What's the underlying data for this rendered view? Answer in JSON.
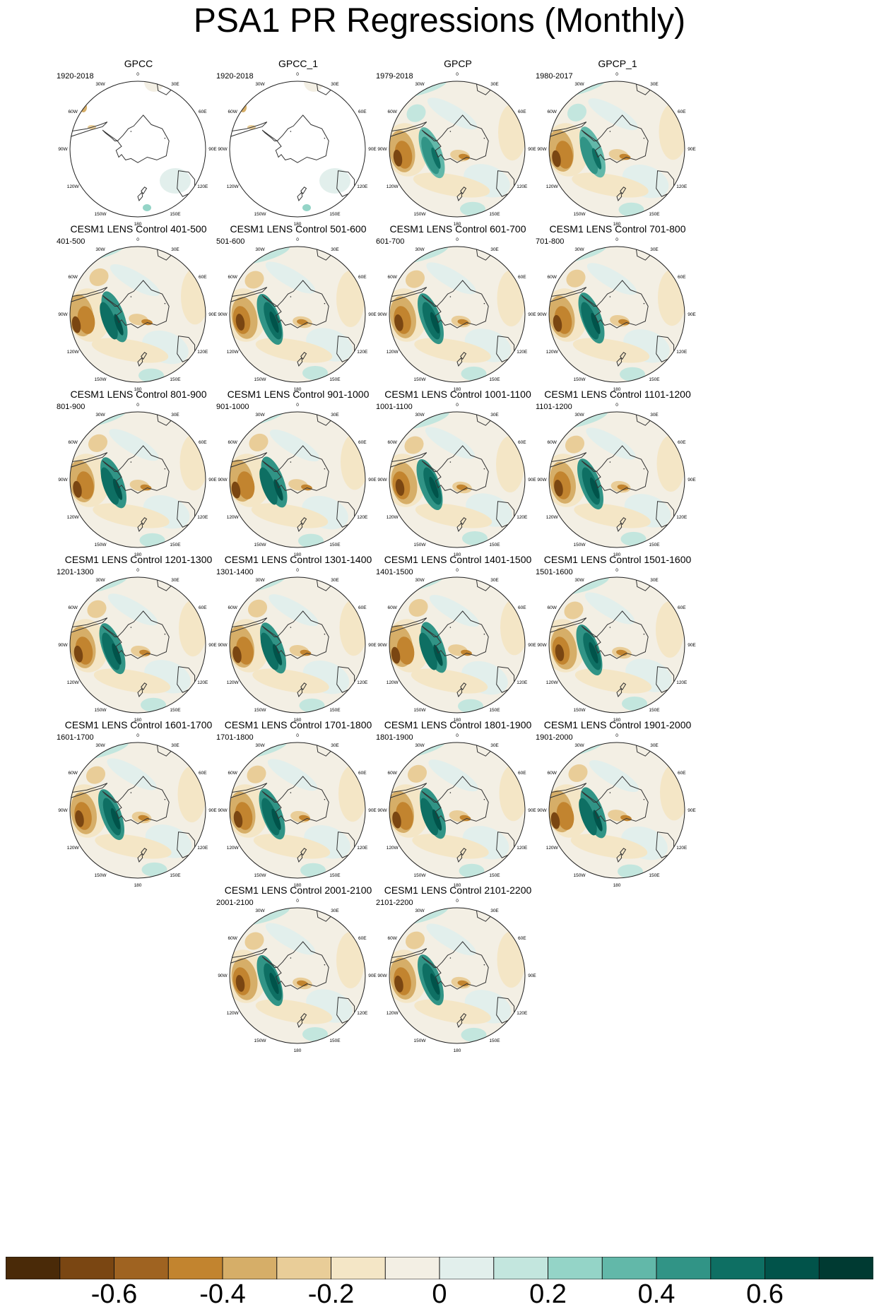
{
  "title": "PSA1 PR Regressions (Monthly)",
  "map_labels": {
    "lon": [
      "0",
      "30E",
      "60E",
      "90E",
      "120E",
      "150E",
      "180",
      "150W",
      "120W",
      "90W",
      "60W",
      "30W"
    ]
  },
  "panels": [
    {
      "title": "GPCC",
      "period": "1920-2018",
      "style": "gpcc"
    },
    {
      "title": "GPCC_1",
      "period": "1920-2018",
      "style": "gpcc"
    },
    {
      "title": "GPCP",
      "period": "1979-2018",
      "style": "obs"
    },
    {
      "title": "GPCP_1",
      "period": "1980-2017",
      "style": "obs"
    },
    {
      "title": "CESM1 LENS Control 401-500",
      "period": "401-500",
      "style": "model"
    },
    {
      "title": "CESM1 LENS Control 501-600",
      "period": "501-600",
      "style": "model"
    },
    {
      "title": "CESM1 LENS Control 601-700",
      "period": "601-700",
      "style": "model"
    },
    {
      "title": "CESM1 LENS Control 701-800",
      "period": "701-800",
      "style": "model"
    },
    {
      "title": "CESM1 LENS Control 801-900",
      "period": "801-900",
      "style": "model"
    },
    {
      "title": "CESM1 LENS Control 901-1000",
      "period": "901-1000",
      "style": "model"
    },
    {
      "title": "CESM1 LENS Control 1001-1100",
      "period": "1001-1100",
      "style": "model"
    },
    {
      "title": "CESM1 LENS Control 1101-1200",
      "period": "1101-1200",
      "style": "model"
    },
    {
      "title": "CESM1 LENS Control 1201-1300",
      "period": "1201-1300",
      "style": "model"
    },
    {
      "title": "CESM1 LENS Control 1301-1400",
      "period": "1301-1400",
      "style": "model"
    },
    {
      "title": "CESM1 LENS Control 1401-1500",
      "period": "1401-1500",
      "style": "model"
    },
    {
      "title": "CESM1 LENS Control 1501-1600",
      "period": "1501-1600",
      "style": "model"
    },
    {
      "title": "CESM1 LENS Control 1601-1700",
      "period": "1601-1700",
      "style": "model"
    },
    {
      "title": "CESM1 LENS Control 1701-1800",
      "period": "1701-1800",
      "style": "model"
    },
    {
      "title": "CESM1 LENS Control 1801-1900",
      "period": "1801-1900",
      "style": "model"
    },
    {
      "title": "CESM1 LENS Control 1901-2000",
      "period": "1901-2000",
      "style": "model"
    },
    {
      "title": "CESM1 LENS Control 2001-2100",
      "period": "2001-2100",
      "style": "model"
    },
    {
      "title": "CESM1 LENS Control 2101-2200",
      "period": "2101-2200",
      "style": "model"
    }
  ],
  "colorbar": {
    "colors": [
      "#4a2a08",
      "#7a4612",
      "#9f6321",
      "#c2842f",
      "#d6ae68",
      "#e9cd98",
      "#f4e6c6",
      "#f3efe4",
      "#e2efec",
      "#c3e6de",
      "#94d4c7",
      "#62b8a9",
      "#319486",
      "#0e6f63",
      "#01534a",
      "#003a32"
    ],
    "labels": [
      "-0.6",
      "-0.4",
      "-0.2",
      "0",
      "0.2",
      "0.4",
      "0.6"
    ]
  },
  "chart_data": {
    "type": "heatmap",
    "title": "PSA1 PR Regressions (Monthly)",
    "projection": "south polar stereographic",
    "panel_titles": [
      "GPCC",
      "GPCC_1",
      "GPCP",
      "GPCP_1",
      "CESM1 LENS Control 401-500",
      "CESM1 LENS Control 501-600",
      "CESM1 LENS Control 601-700",
      "CESM1 LENS Control 701-800",
      "CESM1 LENS Control 801-900",
      "CESM1 LENS Control 901-1000",
      "CESM1 LENS Control 1001-1100",
      "CESM1 LENS Control 1101-1200",
      "CESM1 LENS Control 1201-1300",
      "CESM1 LENS Control 1301-1400",
      "CESM1 LENS Control 1401-1500",
      "CESM1 LENS Control 1501-1600",
      "CESM1 LENS Control 1601-1700",
      "CESM1 LENS Control 1701-1800",
      "CESM1 LENS Control 1801-1900",
      "CESM1 LENS Control 1901-2000",
      "CESM1 LENS Control 2001-2100",
      "CESM1 LENS Control 2101-2200"
    ],
    "colorbar_levels": [
      -0.7,
      -0.6,
      -0.5,
      -0.4,
      -0.3,
      -0.2,
      -0.1,
      0,
      0.1,
      0.2,
      0.3,
      0.4,
      0.5,
      0.6,
      0.7
    ],
    "colorbar_tick_labels": [
      "-0.6",
      "-0.4",
      "-0.2",
      "0",
      "0.2",
      "0.4",
      "0.6"
    ],
    "colorbar_range": [
      -0.8,
      0.8
    ]
  }
}
